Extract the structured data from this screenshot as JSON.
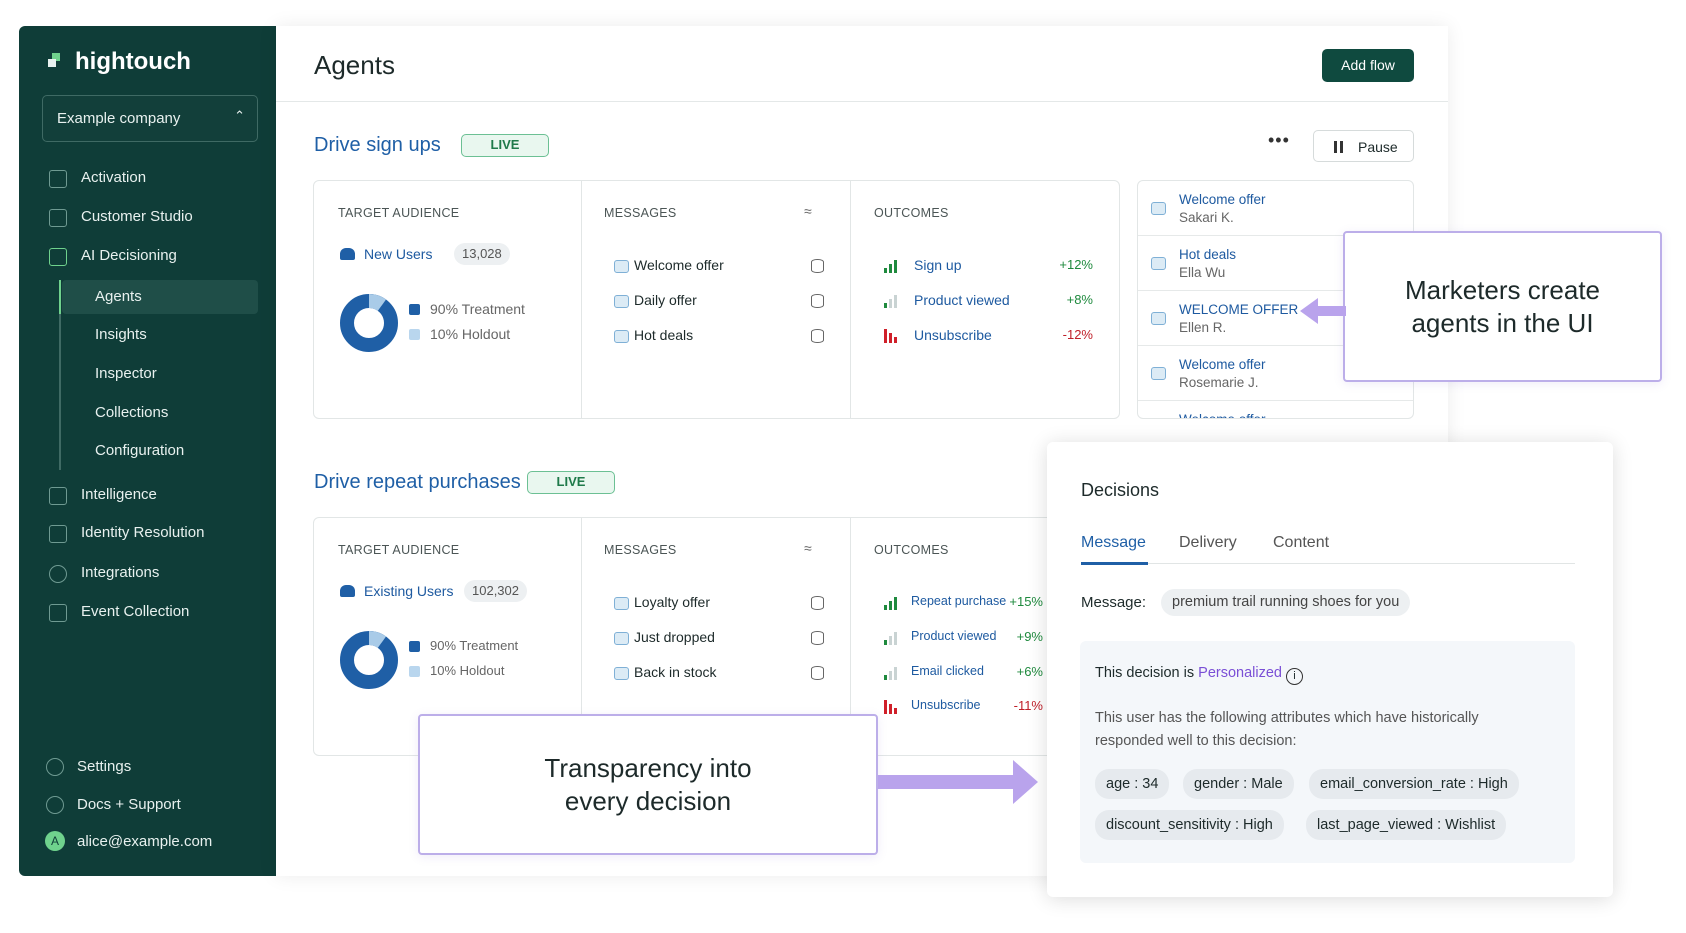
{
  "sidebar": {
    "brand": "hightouch",
    "company": "Example company",
    "nav": [
      "Activation",
      "Customer Studio",
      "AI Decisioning"
    ],
    "subnav": [
      "Agents",
      "Insights",
      "Inspector",
      "Collections",
      "Configuration"
    ],
    "nav2": [
      "Intelligence",
      "Identity Resolution",
      "Integrations",
      "Event Collection"
    ],
    "footer": [
      "Settings",
      "Docs + Support",
      "alice@example.com"
    ],
    "avatar": "A"
  },
  "header": {
    "title": "Agents",
    "button": "Add flow",
    "pause": "Pause"
  },
  "flows": [
    {
      "title": "Drive sign ups",
      "status": "LIVE",
      "audience_label": "TARGET AUDIENCE",
      "segment": "New Users",
      "count": "13,028",
      "treatment": "90% Treatment",
      "holdout": "10% Holdout",
      "messages_label": "MESSAGES",
      "messages": [
        "Welcome offer",
        "Daily offer",
        "Hot deals"
      ],
      "outcomes_label": "OUTCOMES",
      "outcomes": [
        {
          "name": "Sign up",
          "change": "+12%"
        },
        {
          "name": "Product viewed",
          "change": "+8%"
        },
        {
          "name": "Unsubscribe",
          "change": "-12%"
        }
      ]
    },
    {
      "title": "Drive repeat purchases",
      "status": "LIVE",
      "audience_label": "TARGET AUDIENCE",
      "segment": "Existing Users",
      "count": "102,302",
      "treatment": "90% Treatment",
      "holdout": "10% Holdout",
      "messages_label": "MESSAGES",
      "messages": [
        "Loyalty offer",
        "Just dropped",
        "Back in stock"
      ],
      "outcomes_label": "OUTCOMES",
      "outcomes": [
        {
          "name": "Repeat purchase",
          "change": "+15%"
        },
        {
          "name": "Product viewed",
          "change": "+9%"
        },
        {
          "name": "Email clicked",
          "change": "+6%"
        },
        {
          "name": "Unsubscribe",
          "change": "-11%"
        }
      ]
    }
  ],
  "feed": [
    {
      "title": "Welcome offer",
      "name": "Sakari K."
    },
    {
      "title": "Hot deals",
      "name": "Ella Wu"
    },
    {
      "title": "WELCOME OFFER",
      "name": "Ellen R."
    },
    {
      "title": "Welcome offer",
      "name": "Rosemarie J."
    },
    {
      "title": "Welcome offer",
      "name": ""
    }
  ],
  "callouts": [
    "Marketers create agents in the UI",
    "Transparency into every decision"
  ],
  "decisions": {
    "title": "Decisions",
    "tabs": [
      "Message",
      "Delivery",
      "Content"
    ],
    "message_label": "Message:",
    "message": "premium trail running shoes for you",
    "intro": "This decision is",
    "personalized": "Personalized",
    "description": "This user has the following attributes which have historically responded well to this decision:",
    "attributes": [
      "age : 34",
      "gender : Male",
      "email_conversion_rate : High",
      "discount_sensitivity : High",
      "last_page_viewed : Wishlist"
    ]
  }
}
